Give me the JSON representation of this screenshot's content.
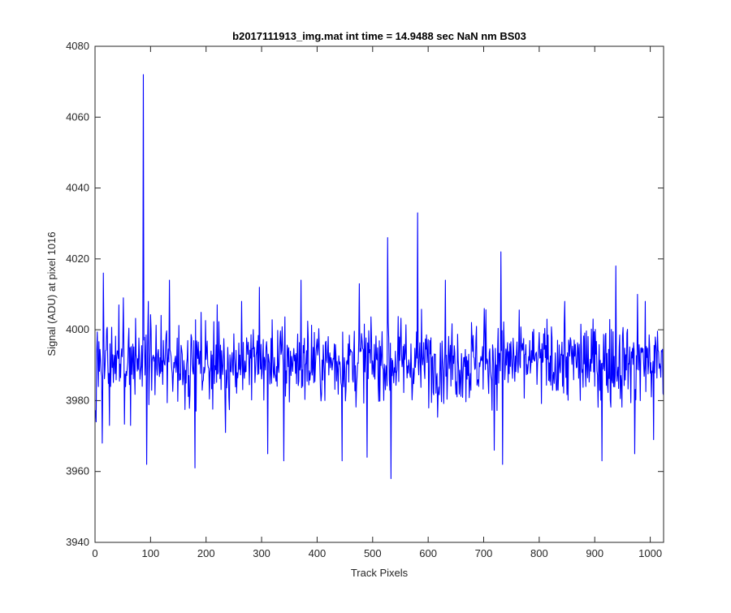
{
  "chart_data": {
    "type": "line",
    "title": "b2017111913_img.mat int time = 14.9488 sec  NaN nm BS03",
    "xlabel": "Track Pixels",
    "ylabel": "Signal (ADU) at pixel 1016",
    "xlim": [
      0,
      1024
    ],
    "ylim": [
      3940,
      4080
    ],
    "xticks": [
      0,
      100,
      200,
      300,
      400,
      500,
      600,
      700,
      800,
      900,
      1000
    ],
    "yticks": [
      3940,
      3960,
      3980,
      4000,
      4020,
      4040,
      4060,
      4080
    ],
    "grid": false,
    "box": true,
    "series": [
      {
        "color": "#0000ff",
        "baseline": 3991,
        "noise_amplitude": 8,
        "points_count": 1024,
        "notable_points": [
          {
            "x": 1,
            "y": 3974
          },
          {
            "x": 12,
            "y": 3968
          },
          {
            "x": 14,
            "y": 4016
          },
          {
            "x": 25,
            "y": 3973
          },
          {
            "x": 42,
            "y": 4007
          },
          {
            "x": 50,
            "y": 4009
          },
          {
            "x": 63,
            "y": 3973
          },
          {
            "x": 86,
            "y": 4072
          },
          {
            "x": 92,
            "y": 3962
          },
          {
            "x": 95,
            "y": 4008
          },
          {
            "x": 133,
            "y": 4014
          },
          {
            "x": 179,
            "y": 3961
          },
          {
            "x": 234,
            "y": 3971
          },
          {
            "x": 263,
            "y": 4008
          },
          {
            "x": 295,
            "y": 4012
          },
          {
            "x": 310,
            "y": 3965
          },
          {
            "x": 339,
            "y": 3963
          },
          {
            "x": 370,
            "y": 4014
          },
          {
            "x": 444,
            "y": 3963
          },
          {
            "x": 475,
            "y": 4013
          },
          {
            "x": 489,
            "y": 3964
          },
          {
            "x": 526,
            "y": 4026
          },
          {
            "x": 532,
            "y": 3958
          },
          {
            "x": 580,
            "y": 4033
          },
          {
            "x": 630,
            "y": 4014
          },
          {
            "x": 700,
            "y": 4006
          },
          {
            "x": 718,
            "y": 3966
          },
          {
            "x": 730,
            "y": 4022
          },
          {
            "x": 733,
            "y": 3962
          },
          {
            "x": 845,
            "y": 4008
          },
          {
            "x": 912,
            "y": 3963
          },
          {
            "x": 937,
            "y": 4018
          },
          {
            "x": 971,
            "y": 3965
          },
          {
            "x": 976,
            "y": 4010
          },
          {
            "x": 990,
            "y": 4008
          },
          {
            "x": 1005,
            "y": 3969
          },
          {
            "x": 1022,
            "y": 3982
          }
        ]
      }
    ]
  }
}
